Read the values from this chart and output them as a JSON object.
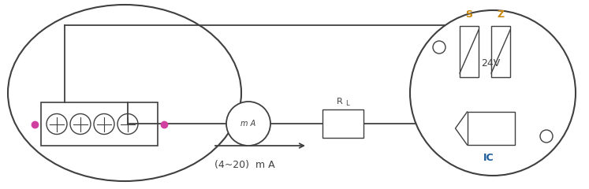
{
  "bg_color": "#ffffff",
  "line_color": "#404040",
  "sz_color": "#c8860a",
  "ic_color": "#1a5a9a",
  "pink_dot_color": "#d040a0",
  "text_24v": "24V",
  "text_ma_range": "(4~20)  m A",
  "text_rl": "R",
  "text_rl_sub": "L",
  "text_ma": "m A",
  "text_s": "S",
  "text_z": "Z",
  "text_ic": "IC"
}
